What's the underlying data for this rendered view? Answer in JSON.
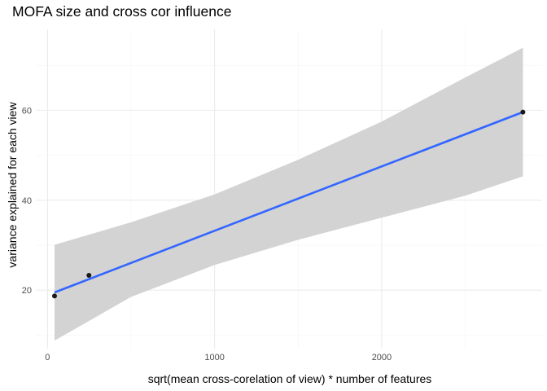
{
  "chart_data": {
    "type": "scatter",
    "title": "MOFA size and cross cor influence",
    "xlabel": "sqrt(mean cross-corelation of view) * number of features",
    "ylabel": "variance explained for each view",
    "xlim": [
      -70,
      2960
    ],
    "ylim": [
      7,
      78
    ],
    "x_ticks": [
      0,
      1000,
      2000
    ],
    "x_minor_ticks": [
      500,
      1500,
      2500
    ],
    "y_ticks": [
      20,
      40,
      60
    ],
    "y_minor_ticks": [
      10,
      30,
      50,
      70
    ],
    "grid": true,
    "points": [
      {
        "x": 42,
        "y": 18.7
      },
      {
        "x": 248,
        "y": 23.3
      },
      {
        "x": 2845,
        "y": 59.6
      }
    ],
    "trend_line": {
      "method": "linear",
      "x": [
        42,
        2845
      ],
      "y": [
        19.5,
        59.6
      ],
      "ci_band": [
        {
          "x": 42,
          "lower": 8.8,
          "upper": 30.1
        },
        {
          "x": 500,
          "lower": 18.5,
          "upper": 35.1
        },
        {
          "x": 1000,
          "lower": 25.6,
          "upper": 41.3
        },
        {
          "x": 1500,
          "lower": 31.2,
          "upper": 49.0
        },
        {
          "x": 2000,
          "lower": 36.1,
          "upper": 57.5
        },
        {
          "x": 2500,
          "lower": 41.0,
          "upper": 67.3
        },
        {
          "x": 2845,
          "lower": 45.3,
          "upper": 73.9
        }
      ]
    },
    "colors": {
      "line": "#3366FF",
      "band": "#D3D3D3",
      "points": "#1a1a1a",
      "grid_major": "#EBEBEB",
      "grid_minor": "#F4F4F4"
    }
  }
}
